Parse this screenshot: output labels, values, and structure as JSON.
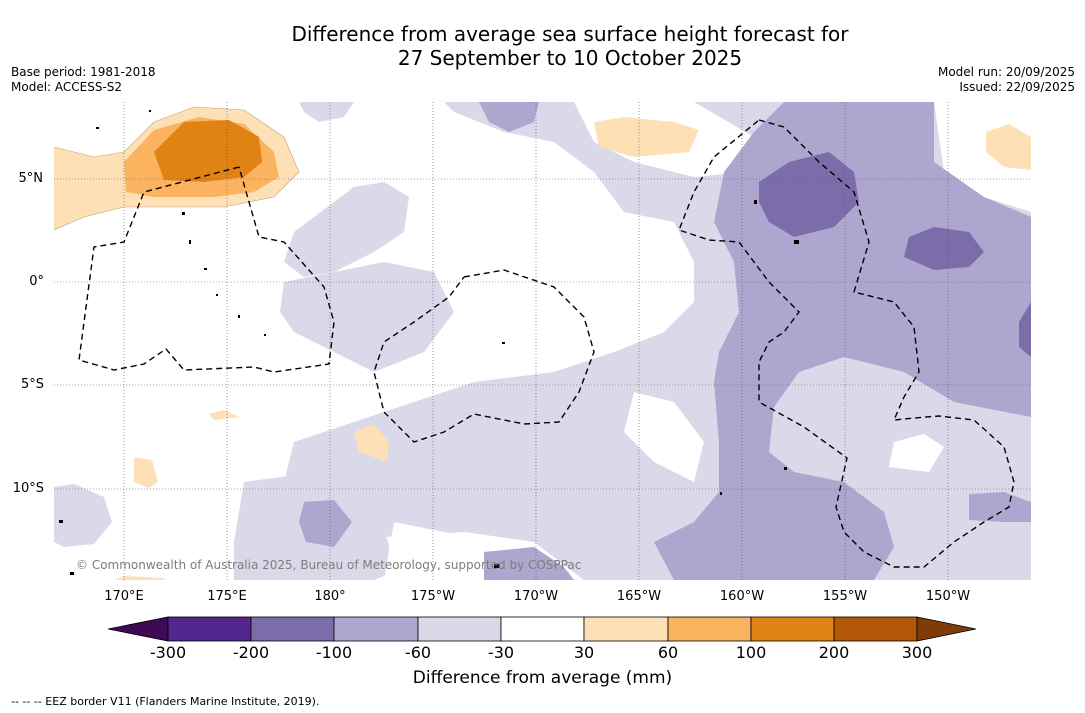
{
  "title_line1": "Difference from average sea surface height forecast for",
  "title_line2": "27 September to 10 October 2025",
  "meta": {
    "base_period": "Base period: 1981-2018",
    "model": "Model: ACCESS-S2",
    "model_run": "Model run: 20/09/2025",
    "issued": "Issued: 22/09/2025"
  },
  "map": {
    "lat_labels": [
      "5°N",
      "0°",
      "5°S",
      "10°S"
    ],
    "lon_labels": [
      "170°E",
      "175°E",
      "180°",
      "175°W",
      "170°W",
      "165°W",
      "160°W",
      "155°W",
      "150°W"
    ],
    "copyright": "© Commonwealth of Australia 2025, Bureau of Meteorology, supported by COSPPac"
  },
  "colorbar": {
    "ticks": [
      "-300",
      "-200",
      "-100",
      "-60",
      "-30",
      "30",
      "60",
      "100",
      "200",
      "300"
    ],
    "label": "Difference from average (mm)",
    "colors": [
      "#3d0a53",
      "#54278f",
      "#7c6daa",
      "#ada7cf",
      "#d9d9ea",
      "#ffffff",
      "#fde0b5",
      "#fbb360",
      "#e08214",
      "#b35806",
      "#7f3b08"
    ]
  },
  "legend_note": "--  --  -- EEZ border V11 (Flanders Marine Institute, 2019)."
}
